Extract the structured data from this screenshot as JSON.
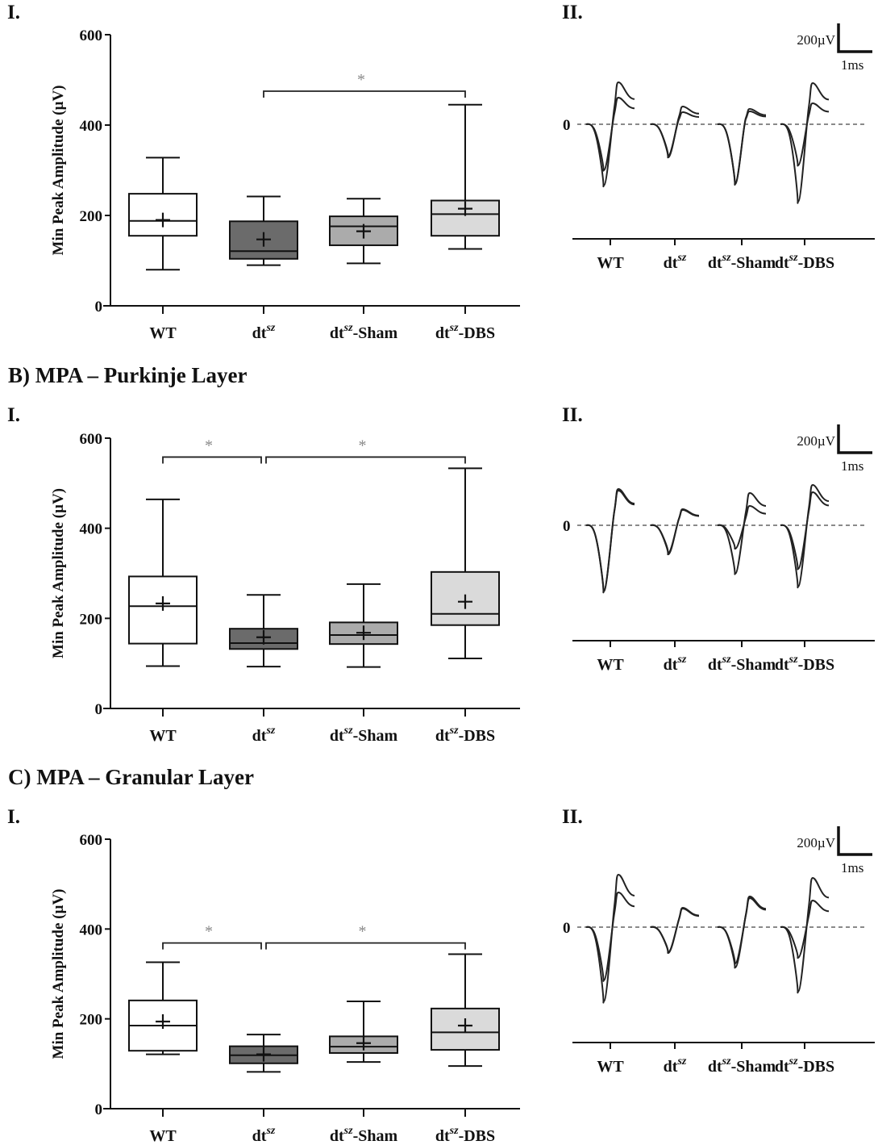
{
  "chart_data": [
    {
      "type": "box",
      "panel": "A.I",
      "section_label": "I.",
      "title": "",
      "ylabel": "Min Peak Amplitude (µV)",
      "xlabel": "",
      "ylim": [
        0,
        600
      ],
      "yticks": [
        0,
        200,
        400,
        600
      ],
      "categories": [
        "WT",
        "dt^sz",
        "dt^sz-Sham",
        "dt^sz-DBS"
      ],
      "series": [
        {
          "name": "WT",
          "fill": "#ffffff",
          "min": 80,
          "q1": 155,
          "median": 188,
          "q3": 248,
          "max": 328,
          "mean": 190
        },
        {
          "name": "dt^sz",
          "fill": "#6b6b6b",
          "min": 90,
          "q1": 104,
          "median": 121,
          "q3": 187,
          "max": 242,
          "mean": 147
        },
        {
          "name": "dt^sz-Sham",
          "fill": "#ababab",
          "min": 94,
          "q1": 134,
          "median": 176,
          "q3": 198,
          "max": 237,
          "mean": 165
        },
        {
          "name": "dt^sz-DBS",
          "fill": "#dadada",
          "min": 126,
          "q1": 155,
          "median": 203,
          "q3": 233,
          "max": 445,
          "mean": 215
        }
      ],
      "significance": [
        {
          "from": 1,
          "to": 3,
          "level": 475,
          "label": "*"
        }
      ]
    },
    {
      "type": "box",
      "panel": "B.I",
      "section_label": "I.",
      "title": "B) MPA – Purkinje Layer",
      "ylabel": "Min Peak Amplitude (µV)",
      "xlabel": "",
      "ylim": [
        0,
        600
      ],
      "yticks": [
        0,
        200,
        400,
        600
      ],
      "categories": [
        "WT",
        "dt^sz",
        "dt^sz-Sham",
        "dt^sz-DBS"
      ],
      "series": [
        {
          "name": "WT",
          "fill": "#ffffff",
          "min": 94,
          "q1": 144,
          "median": 227,
          "q3": 293,
          "max": 464,
          "mean": 233
        },
        {
          "name": "dt^sz",
          "fill": "#6b6b6b",
          "min": 93,
          "q1": 132,
          "median": 145,
          "q3": 177,
          "max": 252,
          "mean": 158
        },
        {
          "name": "dt^sz-Sham",
          "fill": "#ababab",
          "min": 92,
          "q1": 143,
          "median": 163,
          "q3": 191,
          "max": 276,
          "mean": 168
        },
        {
          "name": "dt^sz-DBS",
          "fill": "#dadada",
          "min": 111,
          "q1": 185,
          "median": 210,
          "q3": 303,
          "max": 533,
          "mean": 237
        }
      ],
      "significance": [
        {
          "from": 0,
          "to": 1,
          "level": 558,
          "label": "*"
        },
        {
          "from": 1,
          "to": 3,
          "level": 558,
          "label": "*"
        }
      ]
    },
    {
      "type": "box",
      "panel": "C.I",
      "section_label": "I.",
      "title": "C) MPA – Granular Layer",
      "ylabel": "Min Peak Amplitude (µV)",
      "xlabel": "",
      "ylim": [
        0,
        600
      ],
      "yticks": [
        0,
        200,
        400,
        600
      ],
      "categories": [
        "WT",
        "dt^sz",
        "dt^sz-Sham",
        "dt^sz-DBS"
      ],
      "series": [
        {
          "name": "WT",
          "fill": "#ffffff",
          "min": 121,
          "q1": 129,
          "median": 185,
          "q3": 241,
          "max": 326,
          "mean": 194
        },
        {
          "name": "dt^sz",
          "fill": "#6b6b6b",
          "min": 82,
          "q1": 101,
          "median": 119,
          "q3": 139,
          "max": 165,
          "mean": 121
        },
        {
          "name": "dt^sz-Sham",
          "fill": "#ababab",
          "min": 104,
          "q1": 124,
          "median": 138,
          "q3": 161,
          "max": 239,
          "mean": 146
        },
        {
          "name": "dt^sz-DBS",
          "fill": "#dadada",
          "min": 95,
          "q1": 131,
          "median": 170,
          "q3": 223,
          "max": 344,
          "mean": 185
        }
      ],
      "significance": [
        {
          "from": 0,
          "to": 1,
          "level": 369,
          "label": "*"
        },
        {
          "from": 1,
          "to": 3,
          "level": 369,
          "label": "*"
        }
      ]
    },
    {
      "type": "line",
      "panel": "A.II",
      "section_label": "II.",
      "description": "Representative evoked waveforms (two traces per group)",
      "zero_label": "0",
      "scale_bar": {
        "voltage": "200µV",
        "time": "1ms"
      },
      "categories": [
        "WT",
        "dt^sz",
        "dt^sz-Sham",
        "dt^sz-DBS"
      ],
      "traces": [
        {
          "group": "WT",
          "trough_uV": [
            -285,
            -380
          ],
          "peak_uV": [
            165,
            260
          ]
        },
        {
          "group": "dt^sz",
          "trough_uV": [
            -195,
            -205
          ],
          "peak_uV": [
            75,
            110
          ]
        },
        {
          "group": "dt^sz-Sham",
          "trough_uV": [
            -365,
            -370
          ],
          "peak_uV": [
            80,
            95
          ]
        },
        {
          "group": "dt^sz-DBS",
          "trough_uV": [
            -255,
            -480
          ],
          "peak_uV": [
            130,
            255
          ]
        }
      ]
    },
    {
      "type": "line",
      "panel": "B.II",
      "section_label": "II.",
      "description": "Representative evoked waveforms (two traces per group)",
      "zero_label": "0",
      "scale_bar": {
        "voltage": "200µV",
        "time": "1ms"
      },
      "categories": [
        "WT",
        "dt^sz",
        "dt^sz-Sham",
        "dt^sz-DBS"
      ],
      "traces": [
        {
          "group": "WT",
          "trough_uV": [
            -405,
            -410
          ],
          "peak_uV": [
            215,
            225
          ]
        },
        {
          "group": "dt^sz",
          "trough_uV": [
            -170,
            -180
          ],
          "peak_uV": [
            95,
            100
          ]
        },
        {
          "group": "dt^sz-Sham",
          "trough_uV": [
            -145,
            -300
          ],
          "peak_uV": [
            120,
            200
          ]
        },
        {
          "group": "dt^sz-DBS",
          "trough_uV": [
            -270,
            -380
          ],
          "peak_uV": [
            205,
            250
          ]
        }
      ]
    },
    {
      "type": "line",
      "panel": "C.II",
      "section_label": "II.",
      "description": "Representative evoked waveforms (two traces per group)",
      "zero_label": "0",
      "scale_bar": {
        "voltage": "200µV",
        "time": "1ms"
      },
      "categories": [
        "WT",
        "dt^sz",
        "dt^sz-Sham",
        "dt^sz-DBS"
      ],
      "traces": [
        {
          "group": "WT",
          "trough_uV": [
            -330,
            -460
          ],
          "peak_uV": [
            215,
            325
          ]
        },
        {
          "group": "dt^sz",
          "trough_uV": [
            -155,
            -160
          ],
          "peak_uV": [
            115,
            120
          ]
        },
        {
          "group": "dt^sz-Sham",
          "trough_uV": [
            -225,
            -250
          ],
          "peak_uV": [
            180,
            190
          ]
        },
        {
          "group": "dt^sz-DBS",
          "trough_uV": [
            -190,
            -400
          ],
          "peak_uV": [
            165,
            305
          ]
        }
      ]
    }
  ],
  "labels": {
    "headingA_roman": "I.",
    "headingA_roman2": "II.",
    "headingB": "B) MPA – Purkinje Layer",
    "headingC": "C) MPA – Granular Layer"
  }
}
